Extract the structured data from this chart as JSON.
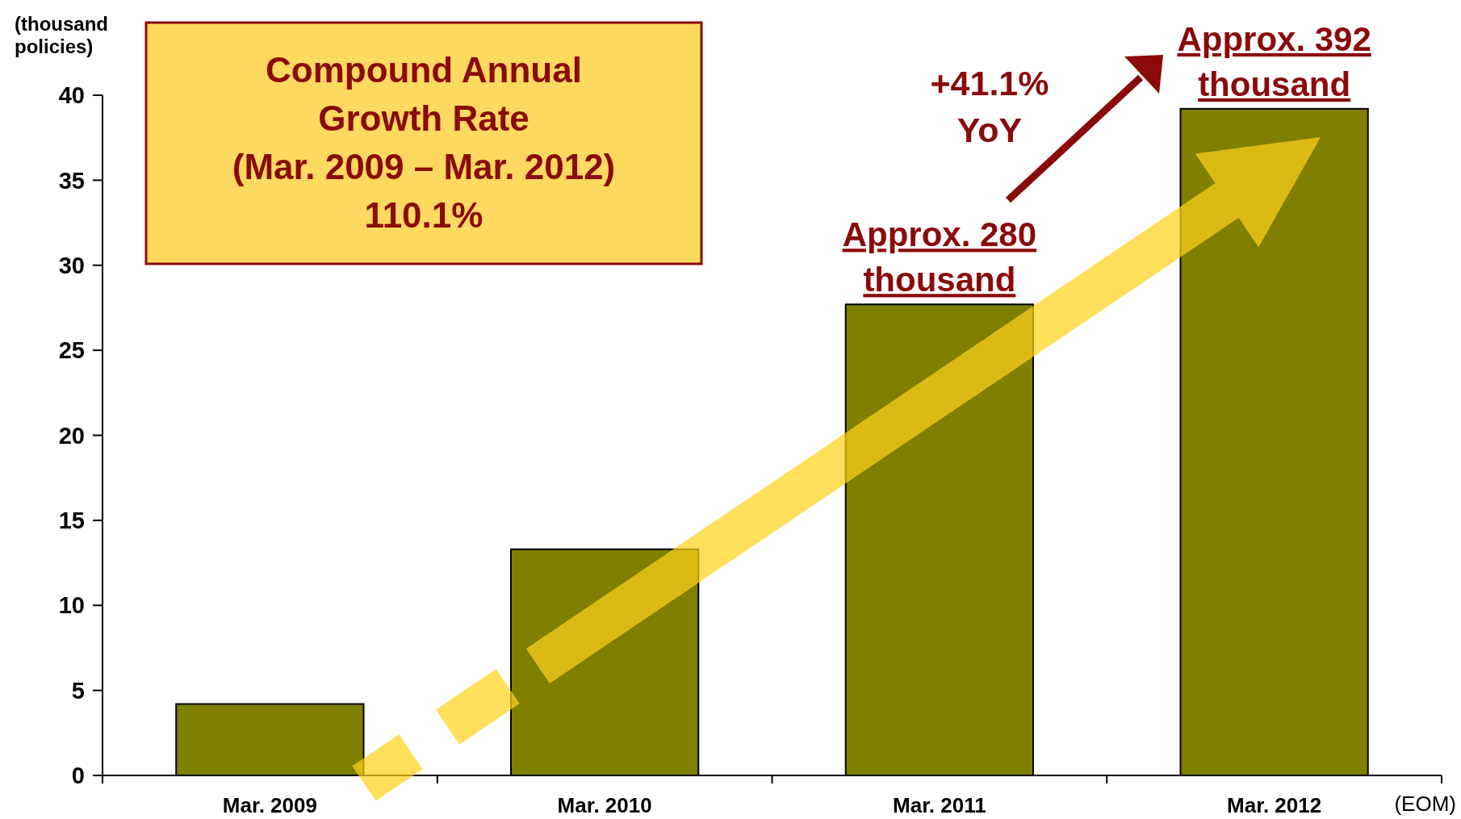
{
  "chart_data": {
    "type": "bar",
    "ylabel": "(thousand\npolicies)",
    "categories": [
      "Mar. 2009",
      "Mar. 2010",
      "Mar. 2011",
      "Mar. 2012"
    ],
    "values": [
      4.2,
      13.3,
      27.7,
      39.2
    ],
    "color": "#7f7f00",
    "ylim": [
      0,
      40
    ],
    "yticks": [
      0,
      5,
      10,
      15,
      20,
      25,
      30,
      35,
      40
    ],
    "grid": false,
    "annotations": [
      "Compound Annual\nGrowth Rate\n(Mar. 2009 – Mar. 2012)\n110.1%",
      "+41.1%\nYoY",
      {
        "text": "Approx. 280\nthousand",
        "x": "Mar. 2011",
        "y": 27.7
      },
      {
        "text": "Approx. 392\nthousand",
        "x": "Mar. 2012",
        "y": 39.2
      },
      "(EOM)"
    ]
  }
}
